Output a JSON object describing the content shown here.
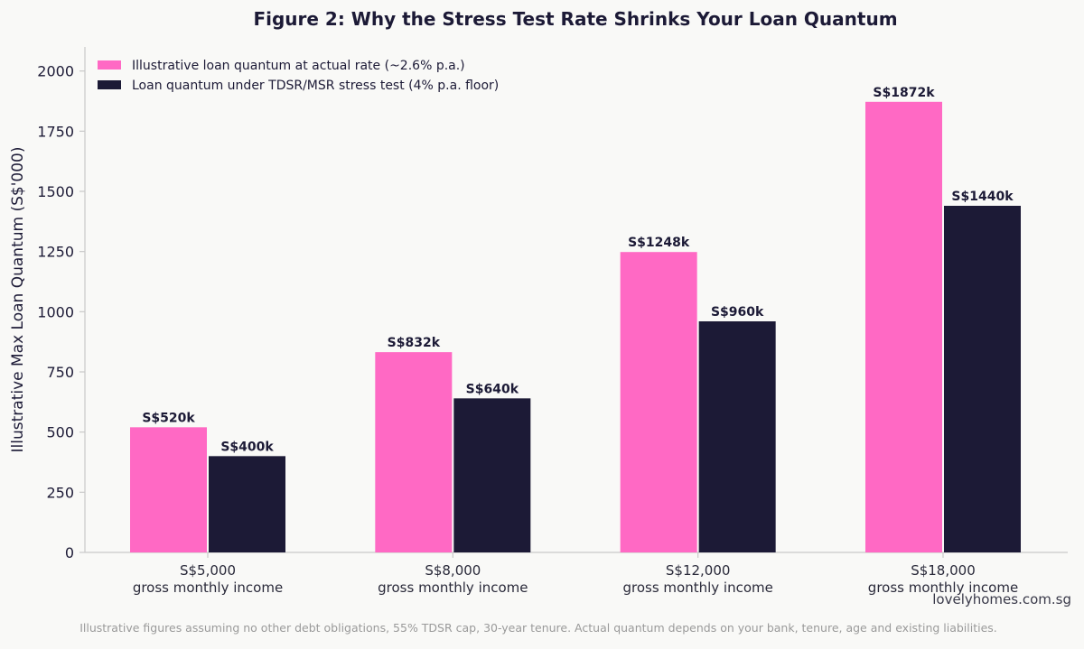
{
  "chart_data": {
    "type": "bar",
    "title": "Figure 2: Why the Stress Test Rate Shrinks Your Loan Quantum",
    "ylabel": "Illustrative Max Loan Quantum (S$'000)",
    "xlabel": "",
    "categories": [
      [
        "S$5,000",
        "gross monthly income"
      ],
      [
        "S$8,000",
        "gross monthly income"
      ],
      [
        "S$12,000",
        "gross monthly income"
      ],
      [
        "S$18,000",
        "gross monthly income"
      ]
    ],
    "series": [
      {
        "name": "Illustrative loan quantum at actual rate (~2.6% p.a.)",
        "color": "#ff69c4",
        "values": [
          520,
          832,
          1248,
          1872
        ],
        "labels": [
          "S$520k",
          "S$832k",
          "S$1248k",
          "S$1872k"
        ]
      },
      {
        "name": "Loan quantum under TDSR/MSR stress test (4% p.a. floor)",
        "color": "#1c1a36",
        "values": [
          400,
          640,
          960,
          1440
        ],
        "labels": [
          "S$400k",
          "S$640k",
          "S$960k",
          "S$1440k"
        ]
      }
    ],
    "ylim": [
      0,
      2100
    ],
    "yticks": [
      0,
      250,
      500,
      750,
      1000,
      1250,
      1500,
      1750,
      2000
    ],
    "grid": false,
    "legend": "top-left"
  },
  "watermark": "lovelyhomes.com.sg",
  "footnote": "Illustrative figures assuming no other debt obligations, 55% TDSR cap, 30-year tenure. Actual quantum depends on your bank, tenure, age and existing liabilities."
}
